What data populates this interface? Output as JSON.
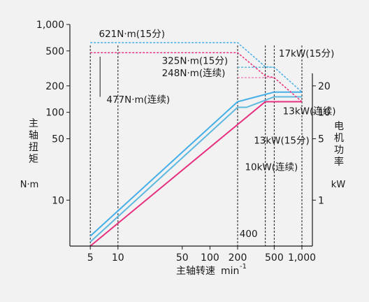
{
  "chart_data": {
    "type": "line",
    "title": "",
    "x_axis": {
      "label": "主轴转速",
      "unit": "min",
      "unit_exponent": "-1",
      "scale": "log",
      "range": [
        3,
        1300
      ],
      "ticks": [
        5,
        10,
        50,
        100,
        200,
        500,
        1000
      ],
      "tick_labels": [
        "5",
        "10",
        "50",
        "100",
        "200",
        "500",
        "1,000"
      ]
    },
    "y_axis_left": {
      "label_chars": [
        "主",
        "轴",
        "扭",
        "矩"
      ],
      "unit": "N·m",
      "scale": "log",
      "range": [
        3,
        1000
      ],
      "ticks": [
        10,
        50,
        100,
        200,
        500,
        1000
      ],
      "tick_labels": [
        "10",
        "50",
        "100",
        "200",
        "500",
        "1,000"
      ]
    },
    "y_axis_right": {
      "label_chars": [
        "电",
        "机",
        "功",
        "率"
      ],
      "unit": "kW",
      "scale": "log",
      "ticks": [
        1,
        5,
        10,
        20
      ],
      "tick_labels": [
        "1",
        "5",
        "10",
        "20"
      ]
    },
    "colors": {
      "blue": "#44aee8",
      "cyan": "#5fb8e0",
      "magenta": "#e6307f",
      "pink": "#f08ab8",
      "dashed_guides": "#1a1a1a",
      "background": "#f2f2f2"
    },
    "series": [
      {
        "name": "",
        "color": "#44aee8",
        "style": "solid",
        "points": [
          [
            5,
            3.9
          ],
          [
            200,
            132
          ],
          [
            500,
            170
          ],
          [
            1000,
            170
          ]
        ]
      },
      {
        "name": "",
        "color": "#5fb8e0",
        "style": "solid",
        "points": [
          [
            5,
            3.35
          ],
          [
            200,
            114
          ],
          [
            250,
            114
          ],
          [
            500,
            150
          ],
          [
            1000,
            150
          ]
        ]
      },
      {
        "name": "",
        "color": "#e6307f",
        "style": "solid",
        "points": [
          [
            5,
            3.0
          ],
          [
            400,
            132
          ],
          [
            500,
            132
          ],
          [
            1000,
            132
          ]
        ]
      },
      {
        "name": "",
        "color": "#44aee8",
        "style": "dashed",
        "points": [
          [
            5,
            621
          ],
          [
            200,
            621
          ],
          [
            400,
            330
          ],
          [
            500,
            325
          ],
          [
            1000,
            170
          ]
        ]
      },
      {
        "name": "",
        "color": "#e6307f",
        "style": "dashed",
        "points": [
          [
            5,
            477
          ],
          [
            200,
            477
          ],
          [
            400,
            260
          ],
          [
            500,
            248
          ],
          [
            1000,
            132
          ]
        ]
      },
      {
        "name": "",
        "color": "#5fb8e0",
        "style": "dashed",
        "points": [
          [
            200,
            325
          ],
          [
            500,
            325
          ]
        ]
      },
      {
        "name": "",
        "color": "#f08ab8",
        "style": "dashed",
        "points": [
          [
            200,
            248
          ],
          [
            500,
            248
          ]
        ]
      }
    ],
    "guide_lines_x": [
      5,
      10,
      200,
      400,
      500,
      1000
    ],
    "annotations": [
      {
        "text": "621N·m(15分)",
        "x": 6.2,
        "y": 720
      },
      {
        "text": "325N·m(15分)",
        "x": 30,
        "y": 355
      },
      {
        "text": "248N·m(连续)",
        "x": 30,
        "y": 258
      },
      {
        "text": "477N·m(连续)",
        "x": 7.5,
        "y": 128
      },
      {
        "text": "17kW(15分)",
        "x": 560,
        "y": 430
      },
      {
        "text": "13kW(连续)",
        "x": 620,
        "y": 95
      },
      {
        "text": "13kW(15分)",
        "x": 300,
        "y": 44
      },
      {
        "text": "10kW(连续)",
        "x": 240,
        "y": 22
      },
      {
        "text": "400",
        "x": 210,
        "y": 3.8
      }
    ]
  }
}
